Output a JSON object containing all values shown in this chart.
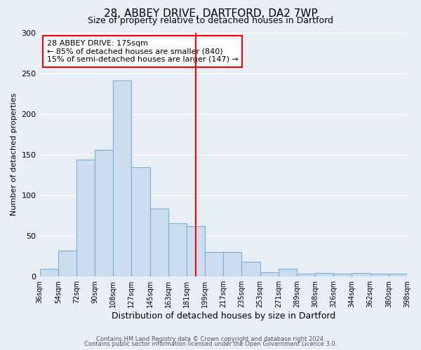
{
  "title": "28, ABBEY DRIVE, DARTFORD, DA2 7WP",
  "subtitle": "Size of property relative to detached houses in Dartford",
  "xlabel": "Distribution of detached houses by size in Dartford",
  "ylabel": "Number of detached properties",
  "bar_color": "#ccddf0",
  "bar_edge_color": "#7aadd4",
  "bg_color": "#e8eef5",
  "grid_color": "white",
  "bin_labels": [
    "36sqm",
    "54sqm",
    "72sqm",
    "90sqm",
    "108sqm",
    "127sqm",
    "145sqm",
    "163sqm",
    "181sqm",
    "199sqm",
    "217sqm",
    "235sqm",
    "253sqm",
    "271sqm",
    "289sqm",
    "308sqm",
    "326sqm",
    "344sqm",
    "362sqm",
    "380sqm",
    "398sqm"
  ],
  "bar_heights": [
    9,
    32,
    144,
    156,
    241,
    134,
    83,
    65,
    62,
    30,
    30,
    18,
    5,
    9,
    3,
    4,
    3,
    4,
    3,
    3
  ],
  "red_line_x": 8.5,
  "ylim": [
    0,
    300
  ],
  "yticks": [
    0,
    50,
    100,
    150,
    200,
    250,
    300
  ],
  "annotation_title": "28 ABBEY DRIVE: 175sqm",
  "annotation_line1": "← 85% of detached houses are smaller (840)",
  "annotation_line2": "15% of semi-detached houses are larger (147) →",
  "footer_line1": "Contains HM Land Registry data © Crown copyright and database right 2024.",
  "footer_line2": "Contains public sector information licensed under the Open Government Licence 3.0."
}
